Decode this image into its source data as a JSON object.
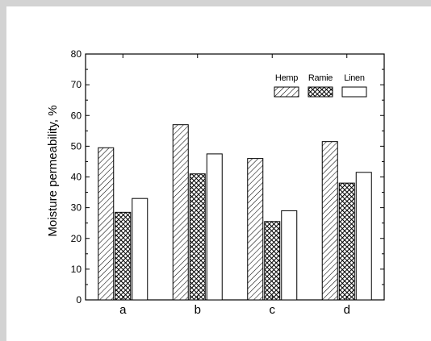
{
  "chart_data": {
    "type": "bar",
    "categories": [
      "a",
      "b",
      "c",
      "d"
    ],
    "series": [
      {
        "name": "Hemp",
        "values": [
          49.5,
          57,
          46,
          51.5
        ],
        "pattern": "hatch"
      },
      {
        "name": "Ramie",
        "values": [
          28.5,
          41,
          25.5,
          38
        ],
        "pattern": "crosshatch"
      },
      {
        "name": "Linen",
        "values": [
          33,
          47.5,
          29,
          41.5
        ],
        "pattern": "open"
      }
    ],
    "title": "",
    "xlabel": "",
    "ylabel": "Moisture permeability, %",
    "ylim": [
      0,
      80
    ],
    "yticks": [
      0,
      10,
      20,
      30,
      40,
      50,
      60,
      70,
      80
    ],
    "grid": false,
    "legend_position": "top-right"
  }
}
